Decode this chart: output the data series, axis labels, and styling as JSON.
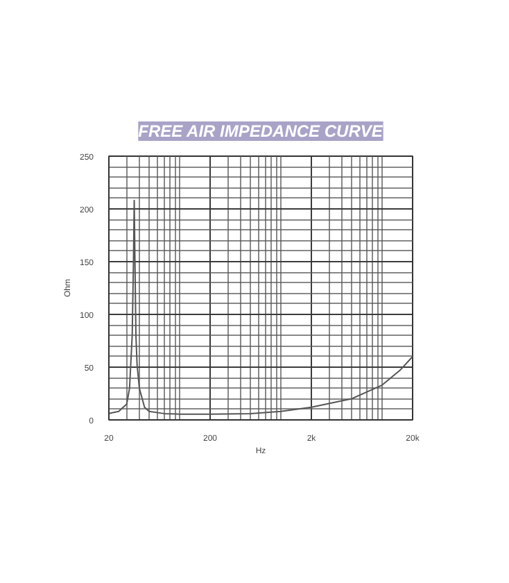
{
  "chart_data": {
    "type": "line",
    "title": "FREE AIR IMPEDANCE CURVE",
    "xlabel": "Hz",
    "ylabel": "Ohm",
    "log": "x",
    "grid": true,
    "marker": "none",
    "line_style": "solid",
    "xlim": [
      20,
      20000
    ],
    "xticks": [
      20,
      200,
      {
        "value": 2000,
        "label": "2k"
      },
      {
        "value": 20000,
        "label": "20k"
      }
    ],
    "ylim": [
      0,
      250
    ],
    "yticks": [
      0,
      50,
      100,
      150,
      200,
      250
    ],
    "series": [
      {
        "color": "#555555",
        "x": [
          20,
          25,
          30,
          32,
          34,
          35,
          35.6,
          36.2,
          37,
          38,
          40,
          45,
          50,
          70,
          100,
          200,
          500,
          1000,
          2000,
          5000,
          10000,
          15000,
          20000
        ],
        "values": [
          6,
          8,
          15,
          30,
          80,
          150,
          208,
          150,
          80,
          52,
          30,
          12,
          8,
          6,
          5.5,
          5.5,
          6,
          8,
          12,
          20,
          33,
          47,
          60
        ]
      }
    ]
  }
}
